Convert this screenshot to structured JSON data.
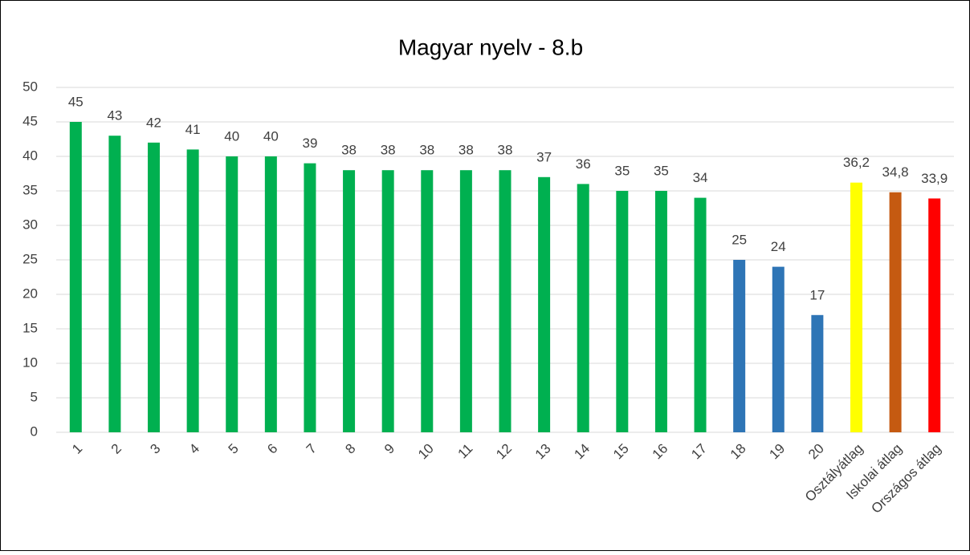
{
  "chart_data": {
    "type": "bar",
    "title": "Magyar nyelv - 8.b",
    "categories": [
      "1",
      "2",
      "3",
      "4",
      "5",
      "6",
      "7",
      "8",
      "9",
      "10",
      "11",
      "12",
      "13",
      "14",
      "15",
      "16",
      "17",
      "18",
      "19",
      "20",
      "Osztályátlag",
      "Iskolai átlag",
      "Országos átlag"
    ],
    "values": [
      45,
      43,
      42,
      41,
      40,
      40,
      39,
      38,
      38,
      38,
      38,
      38,
      37,
      36,
      35,
      35,
      34,
      25,
      24,
      17,
      36.2,
      34.8,
      33.9
    ],
    "value_labels": [
      "45",
      "43",
      "42",
      "41",
      "40",
      "40",
      "39",
      "38",
      "38",
      "38",
      "38",
      "38",
      "37",
      "36",
      "35",
      "35",
      "34",
      "25",
      "24",
      "17",
      "36,2",
      "34,8",
      "33,9"
    ],
    "colors": [
      "#00b050",
      "#00b050",
      "#00b050",
      "#00b050",
      "#00b050",
      "#00b050",
      "#00b050",
      "#00b050",
      "#00b050",
      "#00b050",
      "#00b050",
      "#00b050",
      "#00b050",
      "#00b050",
      "#00b050",
      "#00b050",
      "#00b050",
      "#2e75b6",
      "#2e75b6",
      "#2e75b6",
      "#ffff00",
      "#c55a11",
      "#ff0000"
    ],
    "ylim": [
      0,
      50
    ],
    "yticks": [
      0,
      5,
      10,
      15,
      20,
      25,
      30,
      35,
      40,
      45,
      50
    ],
    "grid": true
  }
}
